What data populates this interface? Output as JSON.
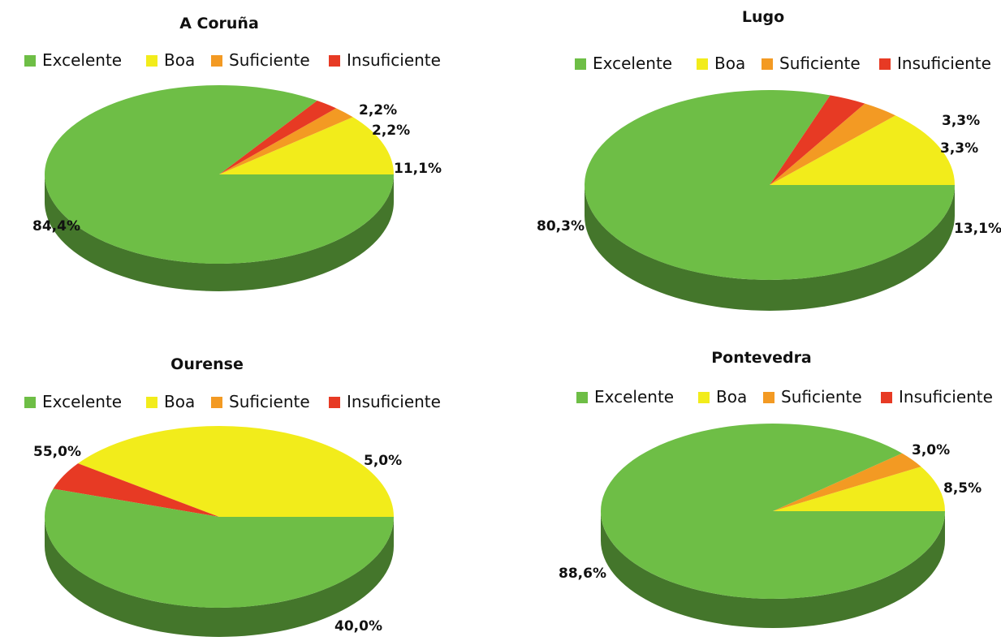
{
  "legend": {
    "items": [
      {
        "key": "excelente",
        "label": "Excelente",
        "color": "#6ebe46"
      },
      {
        "key": "boa",
        "label": "Boa",
        "color": "#f2ec1b"
      },
      {
        "key": "suficiente",
        "label": "Suficiente",
        "color": "#f39a23"
      },
      {
        "key": "insuficiente",
        "label": "Insuficiente",
        "color": "#e73a24"
      }
    ]
  },
  "chart_data": [
    {
      "type": "pie",
      "title": "A Coruña",
      "slices": [
        {
          "category": "Excelente",
          "value": 84.4,
          "label": "84,4%"
        },
        {
          "category": "Boa",
          "value": 11.1,
          "label": "11,1%"
        },
        {
          "category": "Suficiente",
          "value": 2.2,
          "label": "2,2%"
        },
        {
          "category": "Insuficiente",
          "value": 2.2,
          "label": "2,2%"
        }
      ],
      "legend_position": "top"
    },
    {
      "type": "pie",
      "title": "Lugo",
      "slices": [
        {
          "category": "Excelente",
          "value": 80.3,
          "label": "80,3%"
        },
        {
          "category": "Boa",
          "value": 13.1,
          "label": "13,1%"
        },
        {
          "category": "Suficiente",
          "value": 3.3,
          "label": "3,3%"
        },
        {
          "category": "Insuficiente",
          "value": 3.3,
          "label": "3,3%"
        }
      ],
      "legend_position": "top"
    },
    {
      "type": "pie",
      "title": "Ourense",
      "slices": [
        {
          "category": "Excelente",
          "value": 55.0,
          "label": "55,0%"
        },
        {
          "category": "Boa",
          "value": 40.0,
          "label": "40,0%"
        },
        {
          "category": "Suficiente",
          "value": 0,
          "label": ""
        },
        {
          "category": "Insuficiente",
          "value": 5.0,
          "label": "5,0%"
        }
      ],
      "legend_position": "top"
    },
    {
      "type": "pie",
      "title": "Pontevedra",
      "slices": [
        {
          "category": "Excelente",
          "value": 88.6,
          "label": "88,6%"
        },
        {
          "category": "Boa",
          "value": 8.5,
          "label": "8,5%"
        },
        {
          "category": "Suficiente",
          "value": 3.0,
          "label": "3,0%"
        },
        {
          "category": "Insuficiente",
          "value": 0,
          "label": ""
        }
      ],
      "legend_position": "top"
    }
  ]
}
